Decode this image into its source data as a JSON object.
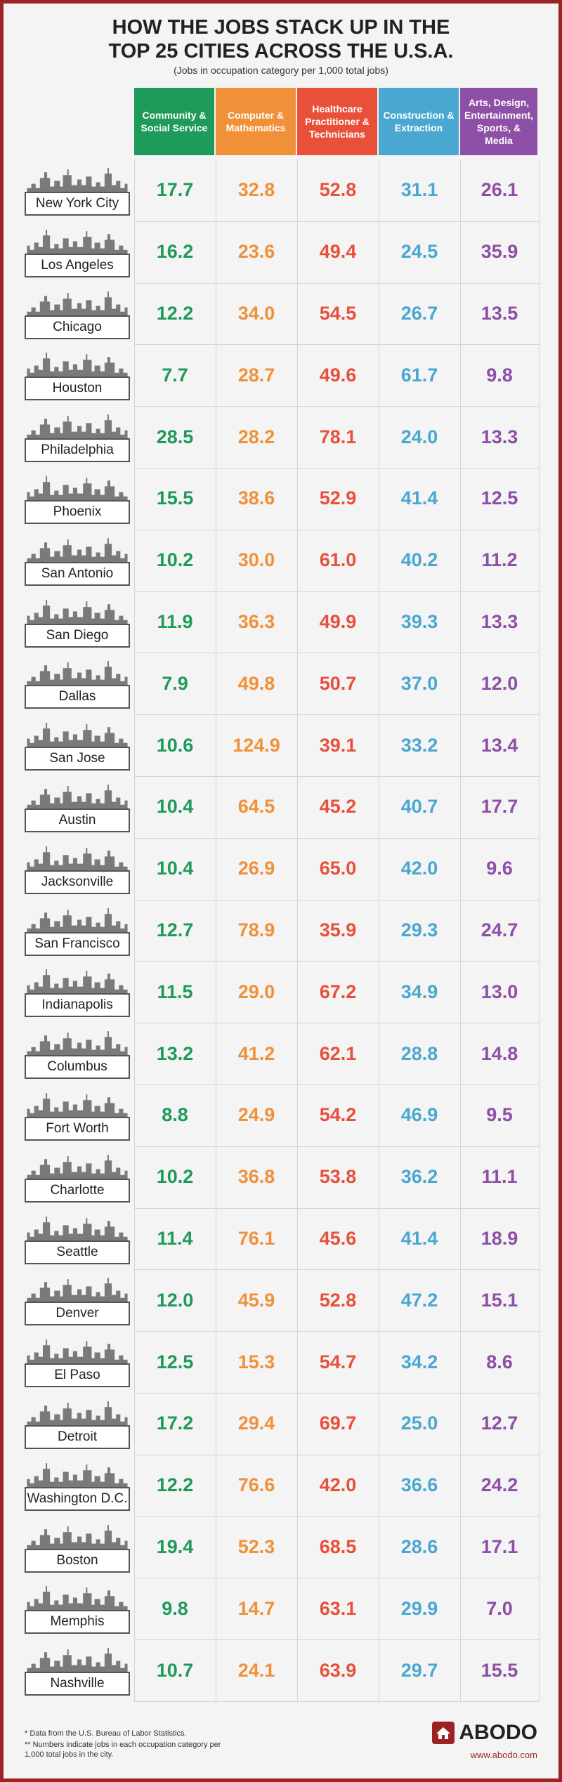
{
  "header": {
    "title_lines": [
      "HOW THE JOBS STACK UP IN THE",
      "TOP 25 CITIES ACROSS THE U.S.A."
    ],
    "subtitle": "(Jobs in occupation category per 1,000 total jobs)"
  },
  "table": {
    "columns": [
      "Community & Social Service",
      "Computer & Mathematics",
      "Healthcare Practitioner & Technicians",
      "Construction & Extraction",
      "Arts, Design, Entertainment, Sports, & Media"
    ],
    "rows": [
      [
        "New York City",
        "17.7",
        "32.8",
        "52.8",
        "31.1",
        "26.1"
      ],
      [
        "Los Angeles",
        "16.2",
        "23.6",
        "49.4",
        "24.5",
        "35.9"
      ],
      [
        "Chicago",
        "12.2",
        "34.0",
        "54.5",
        "26.7",
        "13.5"
      ],
      [
        "Houston",
        "7.7",
        "28.7",
        "49.6",
        "61.7",
        "9.8"
      ],
      [
        "Philadelphia",
        "28.5",
        "28.2",
        "78.1",
        "24.0",
        "13.3"
      ],
      [
        "Phoenix",
        "15.5",
        "38.6",
        "52.9",
        "41.4",
        "12.5"
      ],
      [
        "San Antonio",
        "10.2",
        "30.0",
        "61.0",
        "40.2",
        "11.2"
      ],
      [
        "San Diego",
        "11.9",
        "36.3",
        "49.9",
        "39.3",
        "13.3"
      ],
      [
        "Dallas",
        "7.9",
        "49.8",
        "50.7",
        "37.0",
        "12.0"
      ],
      [
        "San Jose",
        "10.6",
        "124.9",
        "39.1",
        "33.2",
        "13.4"
      ],
      [
        "Austin",
        "10.4",
        "64.5",
        "45.2",
        "40.7",
        "17.7"
      ],
      [
        "Jacksonville",
        "10.4",
        "26.9",
        "65.0",
        "42.0",
        "9.6"
      ],
      [
        "San Francisco",
        "12.7",
        "78.9",
        "35.9",
        "29.3",
        "24.7"
      ],
      [
        "Indianapolis",
        "11.5",
        "29.0",
        "67.2",
        "34.9",
        "13.0"
      ],
      [
        "Columbus",
        "13.2",
        "41.2",
        "62.1",
        "28.8",
        "14.8"
      ],
      [
        "Fort Worth",
        "8.8",
        "24.9",
        "54.2",
        "46.9",
        "9.5"
      ],
      [
        "Charlotte",
        "10.2",
        "36.8",
        "53.8",
        "36.2",
        "11.1"
      ],
      [
        "Seattle",
        "11.4",
        "76.1",
        "45.6",
        "41.4",
        "18.9"
      ],
      [
        "Denver",
        "12.0",
        "45.9",
        "52.8",
        "47.2",
        "15.1"
      ],
      [
        "El Paso",
        "12.5",
        "15.3",
        "54.7",
        "34.2",
        "8.6"
      ],
      [
        "Detroit",
        "17.2",
        "29.4",
        "69.7",
        "25.0",
        "12.7"
      ],
      [
        "Washington D.C.",
        "12.2",
        "76.6",
        "42.0",
        "36.6",
        "24.2"
      ],
      [
        "Boston",
        "19.4",
        "52.3",
        "68.5",
        "28.6",
        "17.1"
      ],
      [
        "Memphis",
        "9.8",
        "14.7",
        "63.1",
        "29.9",
        "7.0"
      ],
      [
        "Nashville",
        "10.7",
        "24.1",
        "63.9",
        "29.7",
        "15.5"
      ]
    ]
  },
  "footer": {
    "notes": [
      "* Data from the U.S. Bureau of Labor Statistics.",
      "** Numbers indicate jobs in each occupation category per 1,000 total jobs in the city."
    ],
    "logo": "ABODO",
    "url": "www.abodo.com"
  }
}
